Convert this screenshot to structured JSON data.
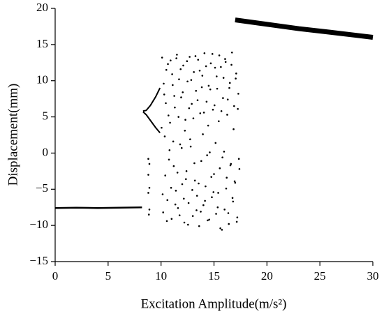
{
  "chart_data": {
    "type": "scatter",
    "x_label": "Excitation Amplitude(m/s²)",
    "y_label": "Displacement(mm)",
    "xlim": [
      0,
      30
    ],
    "ylim": [
      -15,
      20
    ],
    "xticks": [
      0,
      5,
      10,
      15,
      20,
      25,
      30
    ],
    "yticks": [
      {
        "value": -15,
        "label": "−15"
      },
      {
        "value": -10,
        "label": "−10"
      },
      {
        "value": -5,
        "label": "−5"
      },
      0,
      5,
      10,
      15,
      20
    ],
    "grid": false,
    "series": [
      {
        "mode": "line",
        "color": "#000000",
        "line_width": 2.5,
        "x": [
          0,
          2,
          4,
          6,
          8.2
        ],
        "y": [
          -7.6,
          -7.55,
          -7.6,
          -7.55,
          -7.5
        ]
      },
      {
        "mode": "line",
        "color": "#000000",
        "line_width": 2,
        "x": [
          8.3,
          8.6,
          9,
          9.5,
          9.9
        ],
        "y": [
          5.8,
          5.9,
          6.6,
          7.8,
          9.0
        ]
      },
      {
        "mode": "line",
        "color": "#000000",
        "line_width": 2,
        "x": [
          8.3,
          8.6,
          9,
          9.5,
          9.9
        ],
        "y": [
          5.7,
          5.3,
          4.5,
          3.5,
          2.8
        ]
      },
      {
        "mode": "line",
        "color": "#000000",
        "line_width": 7,
        "x": [
          17,
          20,
          23,
          26,
          30
        ],
        "y": [
          18.4,
          17.8,
          17.2,
          16.7,
          16.0
        ]
      },
      {
        "mode": "points",
        "color": "#000000",
        "x": [
          8.8,
          8.9,
          8.8,
          8.9,
          8.8,
          8.9,
          8.85
        ],
        "y": [
          -0.8,
          -1.5,
          -3.0,
          -4.8,
          -5.5,
          -7.8,
          -8.5
        ]
      },
      {
        "mode": "points",
        "color": "#000000",
        "x": [
          10.1,
          10.3,
          10.5,
          10.7,
          10.9,
          11.1,
          11.3,
          11.5,
          11.7,
          11.9,
          12.1,
          12.3,
          12.5,
          12.7,
          12.9,
          13.1,
          13.3,
          13.5,
          13.7,
          13.9,
          14.1,
          14.3,
          14.5,
          14.7,
          14.9,
          15.1,
          15.3,
          15.5,
          15.7,
          15.9,
          16.1,
          16.3,
          16.5,
          16.7,
          16.9,
          17.1,
          17.3
        ],
        "y": [
          13.2,
          8.1,
          11.5,
          5.2,
          12.8,
          9.4,
          6.3,
          13.6,
          10.2,
          7.7,
          12.1,
          4.6,
          9.9,
          13.3,
          6.8,
          11.2,
          8.6,
          12.9,
          5.5,
          10.7,
          13.8,
          7.1,
          9.3,
          12.4,
          6.0,
          11.8,
          8.9,
          13.5,
          5.8,
          10.4,
          12.6,
          7.4,
          9.7,
          13.9,
          6.5,
          11.0,
          8.2
        ]
      },
      {
        "mode": "points",
        "color": "#000000",
        "x": [
          10.2,
          10.4,
          10.6,
          10.8,
          11.0,
          11.2,
          11.4,
          11.6,
          11.8,
          12.0,
          12.2,
          12.4,
          12.6,
          12.8,
          13.0,
          13.2,
          13.4,
          13.6,
          13.8,
          14.0,
          14.2,
          14.4,
          14.6,
          14.8,
          15.0,
          15.2,
          15.4,
          15.6,
          15.8,
          16.0,
          16.2,
          16.4,
          16.6,
          16.8,
          17.0,
          17.2,
          17.4
        ],
        "y": [
          -8.2,
          -3.1,
          -6.5,
          0.4,
          -9.1,
          -1.8,
          -5.2,
          -7.6,
          1.2,
          -4.3,
          -9.6,
          -2.5,
          -6.9,
          0.9,
          -8.7,
          -3.8,
          -5.9,
          -10.1,
          -1.1,
          -7.2,
          -4.6,
          -9.3,
          0.1,
          -6.1,
          -2.9,
          -8.4,
          -5.5,
          -10.4,
          -0.6,
          -7.8,
          -3.4,
          -9.8,
          -1.5,
          -6.7,
          -4.1,
          -8.9,
          -2.2
        ]
      },
      {
        "mode": "points",
        "color": "#000000",
        "x": [
          10.15,
          10.35,
          10.55,
          10.75,
          10.95,
          11.15,
          11.35,
          11.55,
          11.75,
          11.95,
          12.15,
          12.35,
          12.55,
          12.75,
          12.95,
          13.15,
          13.35,
          13.55,
          13.75,
          13.95,
          14.15,
          14.35,
          14.55,
          14.75,
          14.95,
          15.15,
          15.35,
          15.55,
          15.75,
          15.95,
          16.15,
          16.35,
          16.55,
          16.75,
          16.95,
          17.15,
          17.35
        ],
        "y": [
          -5.7,
          2.3,
          -9.4,
          -0.9,
          -4.8,
          1.6,
          -7.1,
          -2.7,
          -8.6,
          0.7,
          -6.3,
          -3.6,
          -9.9,
          1.9,
          -5.1,
          -1.4,
          -7.9,
          -4.2,
          -8.1,
          2.6,
          -6.6,
          -0.3,
          -9.2,
          -3.3,
          -5.4,
          1.4,
          -7.5,
          -2.1,
          -10.6,
          0.2,
          -4.9,
          -8.3,
          -1.7,
          -6.2,
          -3.9,
          -9.5,
          -0.8
        ]
      },
      {
        "mode": "points",
        "color": "#000000",
        "x": [
          10.05,
          10.25,
          10.45,
          10.65,
          10.85,
          11.05,
          11.25,
          11.45,
          11.65,
          11.85,
          12.05,
          12.25,
          12.45,
          12.65,
          12.85,
          13.05,
          13.25,
          13.45,
          13.65,
          13.85,
          14.05,
          14.25,
          14.45,
          14.65,
          14.85,
          15.05,
          15.25,
          15.45,
          15.65,
          15.85,
          16.05,
          16.25,
          16.45,
          16.65,
          16.85,
          17.05,
          17.25
        ],
        "y": [
          3.5,
          9.6,
          6.9,
          12.3,
          4.2,
          10.9,
          7.9,
          13.1,
          5.0,
          11.6,
          8.4,
          3.1,
          12.7,
          6.2,
          10.1,
          4.8,
          13.4,
          7.3,
          11.4,
          9.1,
          5.6,
          12.0,
          3.8,
          8.8,
          13.7,
          6.6,
          10.6,
          4.4,
          11.9,
          7.6,
          13.0,
          5.3,
          9.0,
          12.2,
          3.3,
          10.3,
          6.1
        ]
      }
    ]
  }
}
